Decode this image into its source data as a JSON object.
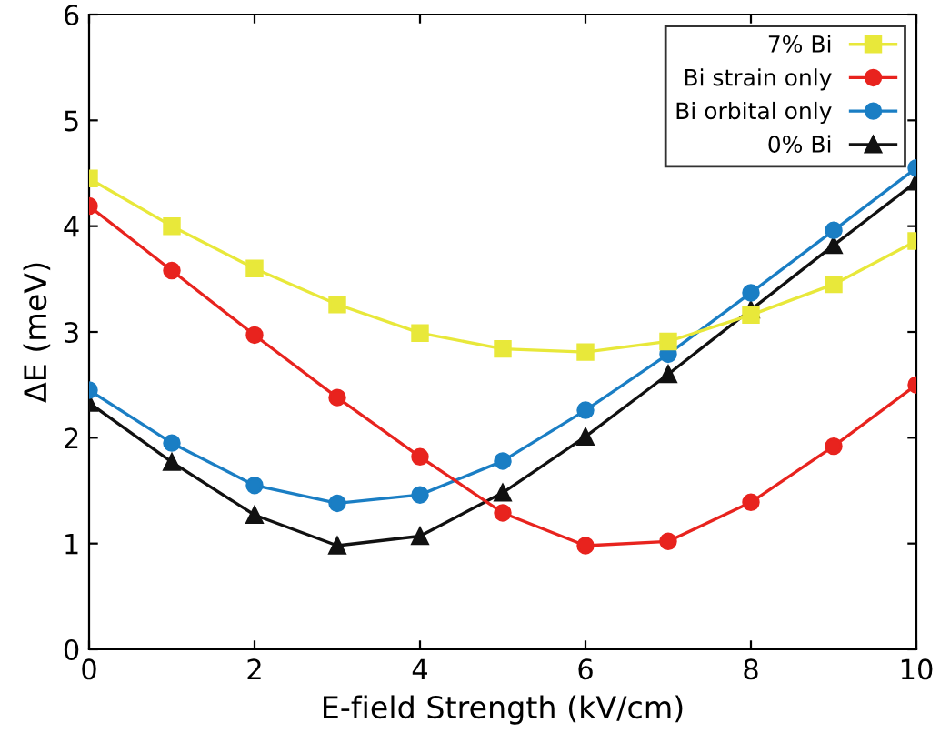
{
  "chart_data": {
    "type": "line",
    "xlabel": "E-field Strength (kV/cm)",
    "ylabel": "ΔE (meV)",
    "x": [
      0,
      1,
      2,
      3,
      4,
      5,
      6,
      7,
      8,
      9,
      10
    ],
    "series": [
      {
        "name": "7% Bi",
        "color": "#e8e83a",
        "marker": "square",
        "values": [
          4.45,
          4.0,
          3.6,
          3.26,
          2.99,
          2.84,
          2.81,
          2.91,
          3.16,
          3.45,
          3.86
        ]
      },
      {
        "name": "Bi strain only",
        "color": "#e8231e",
        "marker": "circle",
        "values": [
          4.19,
          3.58,
          2.97,
          2.38,
          1.82,
          1.29,
          0.98,
          1.02,
          1.39,
          1.92,
          2.5
        ]
      },
      {
        "name": "Bi orbital only",
        "color": "#1a7ec4",
        "marker": "circle",
        "values": [
          2.45,
          1.95,
          1.55,
          1.38,
          1.46,
          1.78,
          2.26,
          2.79,
          3.37,
          3.96,
          4.55
        ]
      },
      {
        "name": "0% Bi",
        "color": "#111111",
        "marker": "triangle",
        "values": [
          2.33,
          1.77,
          1.27,
          0.98,
          1.07,
          1.48,
          2.01,
          2.6,
          3.21,
          3.82,
          4.42
        ]
      }
    ],
    "xlim": [
      0,
      10
    ],
    "xticks": [
      0,
      2,
      4,
      6,
      8,
      10
    ],
    "ylim": [
      0,
      6
    ],
    "yticks": [
      0,
      1,
      2,
      3,
      4,
      5,
      6
    ],
    "grid": false,
    "legend": "top right",
    "line_style": "solid"
  }
}
